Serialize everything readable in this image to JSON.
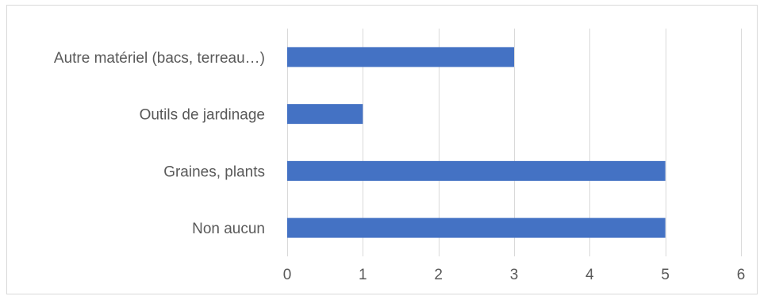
{
  "chart_data": {
    "type": "bar",
    "orientation": "horizontal",
    "categories": [
      "Autre matériel (bacs, terreau…)",
      "Outils de jardinage",
      "Graines, plants",
      "Non aucun"
    ],
    "values": [
      3,
      1,
      5,
      5
    ],
    "xlim": [
      0,
      6
    ],
    "xticks": [
      "0",
      "1",
      "2",
      "3",
      "4",
      "5",
      "6"
    ],
    "grid": true,
    "legend": "none",
    "bar_color": "#4472C4",
    "grid_color": "#D9D9D9",
    "border_color": "#D9D9D9",
    "text_color": "#595959"
  }
}
